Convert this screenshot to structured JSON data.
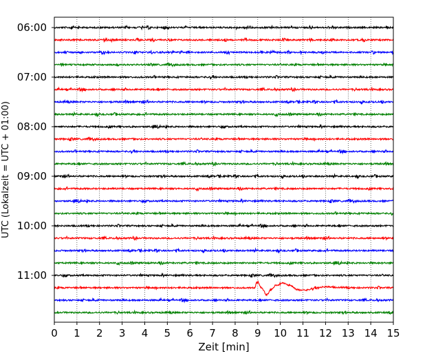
{
  "chart_data": {
    "type": "line",
    "xlabel": "Zeit  [min]",
    "ylabel": "UTC (Lokalzeit = UTC + 01:00)",
    "xlim": [
      0,
      15
    ],
    "x_ticks": [
      0,
      1,
      2,
      3,
      4,
      5,
      6,
      7,
      8,
      9,
      10,
      11,
      12,
      13,
      14,
      15
    ],
    "y_tick_labels": [
      "06:00",
      "07:00",
      "08:00",
      "09:00",
      "10:00",
      "11:00"
    ],
    "grid": "vertical dotted at each minute",
    "trace_colors": [
      "#000000",
      "#ff0000",
      "#0000ff",
      "#008000"
    ],
    "traces": [
      {
        "start": "06:00",
        "color": "#000000"
      },
      {
        "start": "06:15",
        "color": "#ff0000"
      },
      {
        "start": "06:30",
        "color": "#0000ff"
      },
      {
        "start": "06:45",
        "color": "#008000"
      },
      {
        "start": "07:00",
        "color": "#000000"
      },
      {
        "start": "07:15",
        "color": "#ff0000"
      },
      {
        "start": "07:30",
        "color": "#0000ff"
      },
      {
        "start": "07:45",
        "color": "#008000"
      },
      {
        "start": "08:00",
        "color": "#000000"
      },
      {
        "start": "08:15",
        "color": "#ff0000"
      },
      {
        "start": "08:30",
        "color": "#0000ff"
      },
      {
        "start": "08:45",
        "color": "#008000"
      },
      {
        "start": "09:00",
        "color": "#000000"
      },
      {
        "start": "09:15",
        "color": "#ff0000"
      },
      {
        "start": "09:30",
        "color": "#0000ff"
      },
      {
        "start": "09:45",
        "color": "#008000"
      },
      {
        "start": "10:00",
        "color": "#000000"
      },
      {
        "start": "10:15",
        "color": "#ff0000"
      },
      {
        "start": "10:30",
        "color": "#0000ff"
      },
      {
        "start": "10:45",
        "color": "#008000"
      },
      {
        "start": "11:00",
        "color": "#000000"
      },
      {
        "start": "11:15",
        "color": "#ff0000",
        "event": true
      },
      {
        "start": "11:30",
        "color": "#0000ff"
      },
      {
        "start": "11:45",
        "color": "#008000"
      }
    ],
    "event": {
      "trace_start": "11:15",
      "onset_min": 8.85,
      "waveform": [
        [
          8.85,
          0.0
        ],
        [
          9.0,
          0.7
        ],
        [
          9.15,
          0.0
        ],
        [
          9.4,
          -0.85
        ],
        [
          9.6,
          -0.2
        ],
        [
          9.8,
          0.3
        ],
        [
          10.1,
          0.55
        ],
        [
          10.4,
          0.3
        ],
        [
          10.8,
          -0.25
        ],
        [
          11.1,
          -0.3
        ],
        [
          11.5,
          -0.05
        ],
        [
          12.0,
          0.12
        ],
        [
          12.6,
          0.05
        ],
        [
          13.2,
          0.0
        ]
      ]
    }
  }
}
